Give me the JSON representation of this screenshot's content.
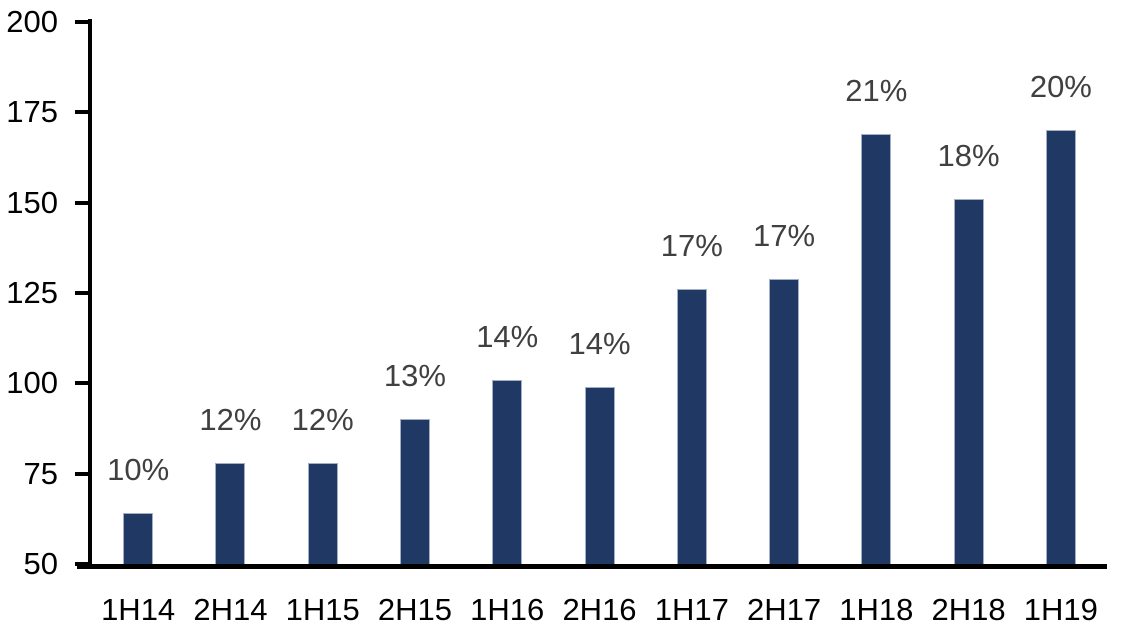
{
  "chart_data": {
    "type": "bar",
    "title": "",
    "xlabel": "",
    "ylabel": "",
    "categories": [
      "1H14",
      "2H14",
      "1H15",
      "2H15",
      "1H16",
      "2H16",
      "1H17",
      "2H17",
      "1H18",
      "2H18",
      "1H19"
    ],
    "values": [
      64,
      78,
      78,
      90,
      101,
      99,
      126,
      129,
      169,
      151,
      170
    ],
    "data_labels": [
      "10%",
      "12%",
      "12%",
      "13%",
      "14%",
      "14%",
      "17%",
      "17%",
      "21%",
      "18%",
      "20%"
    ],
    "ylim": [
      50,
      200
    ],
    "yticks": [
      200,
      175,
      150,
      125,
      100,
      75,
      50
    ],
    "grid": false,
    "legend": false,
    "colors": {
      "bar_fill": "#1F3864",
      "bar_border": "#A3AEC2",
      "data_label": "#404040",
      "axis": "#000000"
    }
  }
}
